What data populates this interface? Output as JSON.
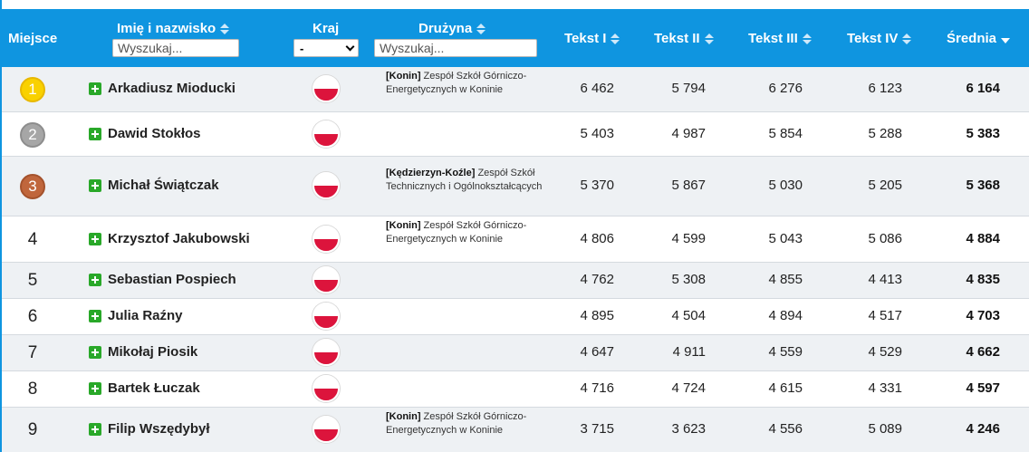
{
  "header": {
    "place": "Miejsce",
    "name": "Imię i nazwisko",
    "country": "Kraj",
    "team": "Drużyna",
    "text1": "Tekst I",
    "text2": "Tekst II",
    "text3": "Tekst III",
    "text4": "Tekst IV",
    "average": "Średnia",
    "name_search_placeholder": "Wyszukaj...",
    "team_search_placeholder": "Wyszukaj...",
    "country_select_value": "-"
  },
  "rows": [
    {
      "place": "1",
      "medal": "gold",
      "name": "Arkadiusz Mioducki",
      "team_city": "[Konin]",
      "team_name": " Zespół Szkół Górniczo-Energetycznych w Koninie",
      "t1": "6 462",
      "t2": "5 794",
      "t3": "6 276",
      "t4": "6 123",
      "avg": "6 164"
    },
    {
      "place": "2",
      "medal": "silver",
      "name": "Dawid Stokłos",
      "team_city": "",
      "team_name": "",
      "t1": "5 403",
      "t2": "4 987",
      "t3": "5 854",
      "t4": "5 288",
      "avg": "5 383"
    },
    {
      "place": "3",
      "medal": "bronze",
      "name": "Michał Świątczak",
      "team_city": "[Kędzierzyn-Koźle]",
      "team_name": " Zespół Szkół Technicznych i Ogólnokształcących",
      "t1": "5 370",
      "t2": "5 867",
      "t3": "5 030",
      "t4": "5 205",
      "avg": "5 368"
    },
    {
      "place": "4",
      "medal": "",
      "name": "Krzysztof Jakubowski",
      "team_city": "[Konin]",
      "team_name": " Zespół Szkół Górniczo-Energetycznych w Koninie",
      "t1": "4 806",
      "t2": "4 599",
      "t3": "5 043",
      "t4": "5 086",
      "avg": "4 884"
    },
    {
      "place": "5",
      "medal": "",
      "name": "Sebastian Pospiech",
      "team_city": "",
      "team_name": "",
      "t1": "4 762",
      "t2": "5 308",
      "t3": "4 855",
      "t4": "4 413",
      "avg": "4 835"
    },
    {
      "place": "6",
      "medal": "",
      "name": "Julia Raźny",
      "team_city": "",
      "team_name": "",
      "t1": "4 895",
      "t2": "4 504",
      "t3": "4 894",
      "t4": "4 517",
      "avg": "4 703"
    },
    {
      "place": "7",
      "medal": "",
      "name": "Mikołaj Piosik",
      "team_city": "",
      "team_name": "",
      "t1": "4 647",
      "t2": "4 911",
      "t3": "4 559",
      "t4": "4 529",
      "avg": "4 662"
    },
    {
      "place": "8",
      "medal": "",
      "name": "Bartek Łuczak",
      "team_city": "",
      "team_name": "",
      "t1": "4 716",
      "t2": "4 724",
      "t3": "4 615",
      "t4": "4 331",
      "avg": "4 597"
    },
    {
      "place": "9",
      "medal": "",
      "name": "Filip Wszędybył",
      "team_city": "[Konin]",
      "team_name": " Zespół Szkół Górniczo-Energetycznych w Koninie",
      "t1": "3 715",
      "t2": "3 623",
      "t3": "4 556",
      "t4": "5 089",
      "avg": "4 246"
    }
  ],
  "colors": {
    "header_bg": "#0f95e0",
    "row_alt_bg": "#eef1f4",
    "plus_green": "#29a829",
    "gold": "#f9d100",
    "silver": "#a6a6a6",
    "bronze": "#c0663c",
    "flag_red": "#dc143c"
  },
  "icons": {
    "sort": "sort-updown-icon",
    "sort_active": "sort-desc-icon",
    "expand": "plus-icon",
    "flag": "poland-flag-icon"
  }
}
